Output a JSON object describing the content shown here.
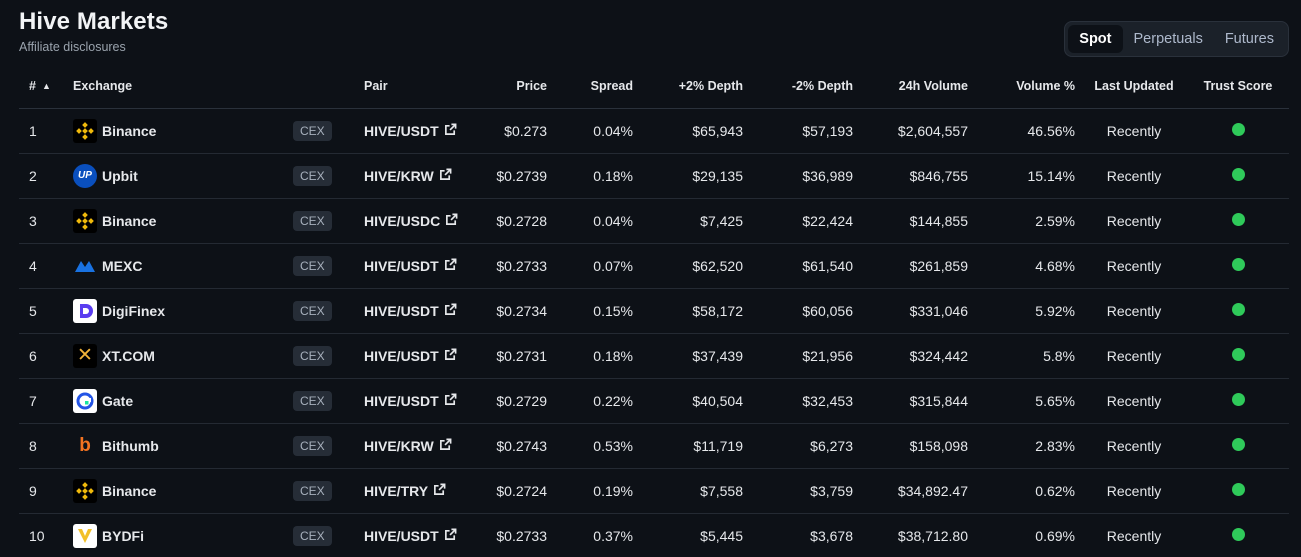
{
  "header": {
    "title": "Hive Markets",
    "subtitle": "Affiliate disclosures"
  },
  "tabs": [
    {
      "label": "Spot",
      "active": true
    },
    {
      "label": "Perpetuals",
      "active": false
    },
    {
      "label": "Futures",
      "active": false
    }
  ],
  "columns": {
    "rank": "#",
    "exchange": "Exchange",
    "pair": "Pair",
    "price": "Price",
    "spread": "Spread",
    "depth_plus": "+2% Depth",
    "depth_minus": "-2% Depth",
    "volume": "24h Volume",
    "volume_pct": "Volume %",
    "last_updated": "Last Updated",
    "trust_score": "Trust Score"
  },
  "rows": [
    {
      "rank": "1",
      "exchange": "Binance",
      "logo": "binance-icon",
      "type": "CEX",
      "pair": "HIVE/USDT",
      "price": "$0.273",
      "spread": "0.04%",
      "depth_plus": "$65,943",
      "depth_minus": "$57,193",
      "volume": "$2,604,557",
      "volume_pct": "46.56%",
      "last_updated": "Recently",
      "trust_color": "#2fca5a"
    },
    {
      "rank": "2",
      "exchange": "Upbit",
      "logo": "upbit-icon",
      "logo_text": "UP",
      "type": "CEX",
      "pair": "HIVE/KRW",
      "price": "$0.2739",
      "spread": "0.18%",
      "depth_plus": "$29,135",
      "depth_minus": "$36,989",
      "volume": "$846,755",
      "volume_pct": "15.14%",
      "last_updated": "Recently",
      "trust_color": "#2fca5a"
    },
    {
      "rank": "3",
      "exchange": "Binance",
      "logo": "binance-icon",
      "type": "CEX",
      "pair": "HIVE/USDC",
      "price": "$0.2728",
      "spread": "0.04%",
      "depth_plus": "$7,425",
      "depth_minus": "$22,424",
      "volume": "$144,855",
      "volume_pct": "2.59%",
      "last_updated": "Recently",
      "trust_color": "#2fca5a"
    },
    {
      "rank": "4",
      "exchange": "MEXC",
      "logo": "mexc-icon",
      "type": "CEX",
      "pair": "HIVE/USDT",
      "price": "$0.2733",
      "spread": "0.07%",
      "depth_plus": "$62,520",
      "depth_minus": "$61,540",
      "volume": "$261,859",
      "volume_pct": "4.68%",
      "last_updated": "Recently",
      "trust_color": "#2fca5a"
    },
    {
      "rank": "5",
      "exchange": "DigiFinex",
      "logo": "digifinex-icon",
      "type": "CEX",
      "pair": "HIVE/USDT",
      "price": "$0.2734",
      "spread": "0.15%",
      "depth_plus": "$58,172",
      "depth_minus": "$60,056",
      "volume": "$331,046",
      "volume_pct": "5.92%",
      "last_updated": "Recently",
      "trust_color": "#2fca5a"
    },
    {
      "rank": "6",
      "exchange": "XT.COM",
      "logo": "xt-icon",
      "type": "CEX",
      "pair": "HIVE/USDT",
      "price": "$0.2731",
      "spread": "0.18%",
      "depth_plus": "$37,439",
      "depth_minus": "$21,956",
      "volume": "$324,442",
      "volume_pct": "5.8%",
      "last_updated": "Recently",
      "trust_color": "#2fca5a"
    },
    {
      "rank": "7",
      "exchange": "Gate",
      "logo": "gate-icon",
      "type": "CEX",
      "pair": "HIVE/USDT",
      "price": "$0.2729",
      "spread": "0.22%",
      "depth_plus": "$40,504",
      "depth_minus": "$32,453",
      "volume": "$315,844",
      "volume_pct": "5.65%",
      "last_updated": "Recently",
      "trust_color": "#2fca5a"
    },
    {
      "rank": "8",
      "exchange": "Bithumb",
      "logo": "bithumb-icon",
      "type": "CEX",
      "pair": "HIVE/KRW",
      "price": "$0.2743",
      "spread": "0.53%",
      "depth_plus": "$11,719",
      "depth_minus": "$6,273",
      "volume": "$158,098",
      "volume_pct": "2.83%",
      "last_updated": "Recently",
      "trust_color": "#2fca5a"
    },
    {
      "rank": "9",
      "exchange": "Binance",
      "logo": "binance-icon",
      "type": "CEX",
      "pair": "HIVE/TRY",
      "price": "$0.2724",
      "spread": "0.19%",
      "depth_plus": "$7,558",
      "depth_minus": "$3,759",
      "volume": "$34,892.47",
      "volume_pct": "0.62%",
      "last_updated": "Recently",
      "trust_color": "#2fca5a"
    },
    {
      "rank": "10",
      "exchange": "BYDFi",
      "logo": "bydfi-icon",
      "type": "CEX",
      "pair": "HIVE/USDT",
      "price": "$0.2733",
      "spread": "0.37%",
      "depth_plus": "$5,445",
      "depth_minus": "$3,678",
      "volume": "$38,712.80",
      "volume_pct": "0.69%",
      "last_updated": "Recently",
      "trust_color": "#2fca5a"
    }
  ]
}
